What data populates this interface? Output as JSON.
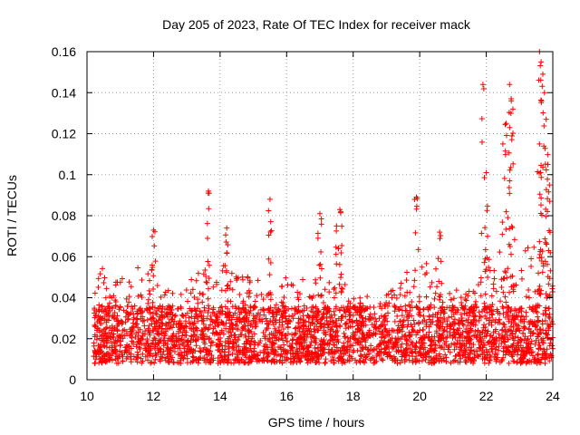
{
  "chart_data": {
    "type": "scatter",
    "title": "Day 205 of 2023, Rate Of TEC Index for receiver mack",
    "xlabel": "GPS time / hours",
    "ylabel": "ROTI / TECUs",
    "xlim": [
      10,
      24
    ],
    "ylim": [
      0,
      0.16
    ],
    "xticks": [
      10,
      12,
      14,
      16,
      18,
      20,
      22,
      24
    ],
    "xtick_labels": [
      "10",
      "12",
      "14",
      "16",
      "18",
      "20",
      "22",
      "24"
    ],
    "yticks": [
      0,
      0.02,
      0.04,
      0.06,
      0.08,
      0.1,
      0.12,
      0.14,
      0.16
    ],
    "ytick_labels": [
      "0",
      "0.02",
      "0.04",
      "0.06",
      "0.08",
      "0.1",
      "0.12",
      "0.14",
      "0.16"
    ],
    "grid": true,
    "marker": "+",
    "color": "#ff0000",
    "envelope": {
      "x": [
        10.2,
        10.5,
        11.0,
        11.5,
        12.0,
        12.5,
        13.0,
        13.5,
        14.0,
        14.5,
        15.0,
        15.5,
        16.0,
        16.5,
        17.0,
        17.5,
        18.0,
        18.5,
        19.0,
        19.5,
        20.0,
        20.5,
        21.0,
        21.5,
        22.0,
        22.5,
        23.0,
        23.5,
        24.0
      ],
      "y": [
        0.052,
        0.055,
        0.05,
        0.055,
        0.058,
        0.052,
        0.05,
        0.055,
        0.06,
        0.052,
        0.05,
        0.048,
        0.05,
        0.05,
        0.055,
        0.05,
        0.045,
        0.04,
        0.042,
        0.055,
        0.06,
        0.055,
        0.05,
        0.045,
        0.06,
        0.065,
        0.065,
        0.065,
        0.055
      ]
    },
    "peaks": [
      {
        "x": 13.65,
        "y": 0.092
      },
      {
        "x": 14.2,
        "y": 0.074
      },
      {
        "x": 12.0,
        "y": 0.073
      },
      {
        "x": 15.5,
        "y": 0.088
      },
      {
        "x": 17.0,
        "y": 0.081
      },
      {
        "x": 17.6,
        "y": 0.083
      },
      {
        "x": 17.5,
        "y": 0.075
      },
      {
        "x": 19.9,
        "y": 0.089
      },
      {
        "x": 20.6,
        "y": 0.072
      },
      {
        "x": 21.9,
        "y": 0.144
      },
      {
        "x": 22.0,
        "y": 0.101
      },
      {
        "x": 22.5,
        "y": 0.115
      },
      {
        "x": 22.6,
        "y": 0.125
      },
      {
        "x": 22.7,
        "y": 0.144
      },
      {
        "x": 22.75,
        "y": 0.137
      },
      {
        "x": 22.8,
        "y": 0.132
      },
      {
        "x": 23.6,
        "y": 0.16
      },
      {
        "x": 23.65,
        "y": 0.155
      },
      {
        "x": 23.7,
        "y": 0.149
      },
      {
        "x": 23.75,
        "y": 0.14
      },
      {
        "x": 23.8,
        "y": 0.127
      },
      {
        "x": 23.6,
        "y": 0.115
      },
      {
        "x": 23.85,
        "y": 0.105
      },
      {
        "x": 23.9,
        "y": 0.095
      }
    ]
  }
}
